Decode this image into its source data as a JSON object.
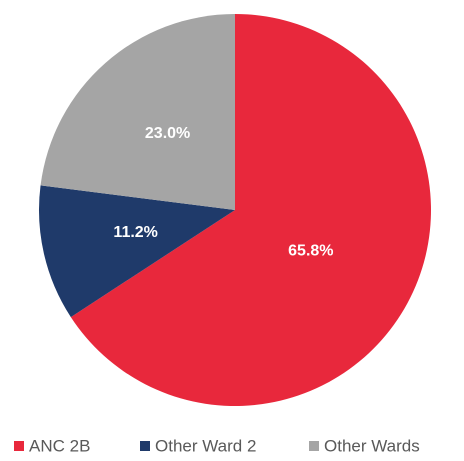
{
  "chart_data": {
    "type": "pie",
    "categories": [
      "ANC 2B",
      "Other Ward 2",
      "Other Wards"
    ],
    "values": [
      65.8,
      11.2,
      23.0
    ],
    "value_labels": [
      "65.8%",
      "11.2%",
      "23.0%"
    ],
    "colors": [
      "#e8283c",
      "#1f3a6a",
      "#a5a5a5"
    ],
    "legend": "bottom"
  }
}
